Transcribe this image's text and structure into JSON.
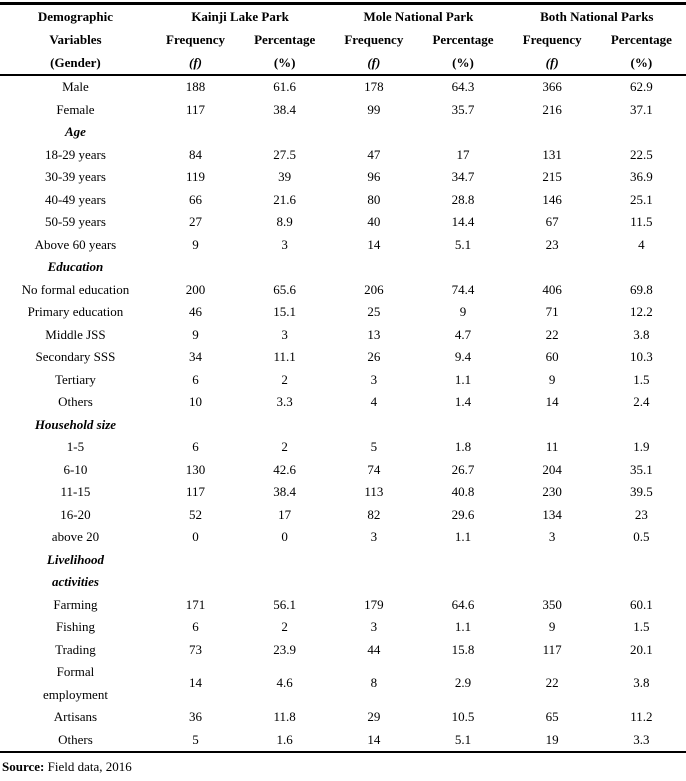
{
  "table": {
    "header": {
      "col1": [
        "Demographic",
        "Variables",
        "(Gender)"
      ],
      "groups": [
        "Kainji Lake Park",
        "Mole National Park",
        "Both National Parks"
      ],
      "sub_labels": [
        "Frequency",
        "Percentage",
        "Frequency",
        "Percentage",
        "Frequency",
        "Percentage"
      ],
      "sub_symbols": [
        "(f)",
        "(%)",
        "(f)",
        "(%)",
        "(f)",
        "(%)"
      ]
    },
    "rows": [
      {
        "type": "data",
        "label": "Male",
        "values": [
          "188",
          "61.6",
          "178",
          "64.3",
          "366",
          "62.9"
        ]
      },
      {
        "type": "data",
        "label": "Female",
        "values": [
          "117",
          "38.4",
          "99",
          "35.7",
          "216",
          "37.1"
        ]
      },
      {
        "type": "section",
        "label": "Age",
        "values": [
          "",
          "",
          "",
          "",
          "",
          ""
        ]
      },
      {
        "type": "data",
        "label": "18-29 years",
        "values": [
          "84",
          "27.5",
          "47",
          "17",
          "131",
          "22.5"
        ]
      },
      {
        "type": "data",
        "label": "30-39 years",
        "values": [
          "119",
          "39",
          "96",
          "34.7",
          "215",
          "36.9"
        ]
      },
      {
        "type": "data",
        "label": "40-49 years",
        "values": [
          "66",
          "21.6",
          "80",
          "28.8",
          "146",
          "25.1"
        ]
      },
      {
        "type": "data",
        "label": "50-59 years",
        "values": [
          "27",
          "8.9",
          "40",
          "14.4",
          "67",
          "11.5"
        ]
      },
      {
        "type": "data",
        "label": "Above 60 years",
        "values": [
          "9",
          "3",
          "14",
          "5.1",
          "23",
          "4"
        ]
      },
      {
        "type": "section",
        "label": "Education",
        "values": [
          "",
          "",
          "",
          "",
          "",
          ""
        ]
      },
      {
        "type": "data",
        "label": "No formal education",
        "values": [
          "200",
          "65.6",
          "206",
          "74.4",
          "406",
          "69.8"
        ]
      },
      {
        "type": "data",
        "label": "Primary education",
        "values": [
          "46",
          "15.1",
          "25",
          "9",
          "71",
          "12.2"
        ]
      },
      {
        "type": "data",
        "label": "Middle JSS",
        "values": [
          "9",
          "3",
          "13",
          "4.7",
          "22",
          "3.8"
        ]
      },
      {
        "type": "data",
        "label": "Secondary SSS",
        "values": [
          "34",
          "11.1",
          "26",
          "9.4",
          "60",
          "10.3"
        ]
      },
      {
        "type": "data",
        "label": "Tertiary",
        "values": [
          "6",
          "2",
          "3",
          "1.1",
          "9",
          "1.5"
        ]
      },
      {
        "type": "data",
        "label": "Others",
        "values": [
          "10",
          "3.3",
          "4",
          "1.4",
          "14",
          "2.4"
        ]
      },
      {
        "type": "section",
        "label": "Household size",
        "values": [
          "",
          "",
          "",
          "",
          "",
          ""
        ]
      },
      {
        "type": "data",
        "label": "1-5",
        "values": [
          "6",
          "2",
          "5",
          "1.8",
          "11",
          "1.9"
        ]
      },
      {
        "type": "data",
        "label": "6-10",
        "values": [
          "130",
          "42.6",
          "74",
          "26.7",
          "204",
          "35.1"
        ]
      },
      {
        "type": "data",
        "label": "11-15",
        "values": [
          "117",
          "38.4",
          "113",
          "40.8",
          "230",
          "39.5"
        ]
      },
      {
        "type": "data",
        "label": "16-20",
        "values": [
          "52",
          "17",
          "82",
          "29.6",
          "134",
          "23"
        ]
      },
      {
        "type": "data",
        "label": "above 20",
        "values": [
          "0",
          "0",
          "3",
          "1.1",
          "3",
          "0.5"
        ]
      },
      {
        "type": "section",
        "label": "Livelihood\nactivities",
        "values": [
          "",
          "",
          "",
          "",
          "",
          ""
        ]
      },
      {
        "type": "data",
        "label": "Farming",
        "values": [
          "171",
          "56.1",
          "179",
          "64.6",
          "350",
          "60.1"
        ]
      },
      {
        "type": "data",
        "label": "Fishing",
        "values": [
          "6",
          "2",
          "3",
          "1.1",
          "9",
          "1.5"
        ]
      },
      {
        "type": "data",
        "label": "Trading",
        "values": [
          "73",
          "23.9",
          "44",
          "15.8",
          "117",
          "20.1"
        ]
      },
      {
        "type": "data",
        "label": "Formal\nemployment",
        "values": [
          "14",
          "4.6",
          "8",
          "2.9",
          "22",
          "3.8"
        ]
      },
      {
        "type": "data",
        "label": "Artisans",
        "values": [
          "36",
          "11.8",
          "29",
          "10.5",
          "65",
          "11.2"
        ]
      },
      {
        "type": "data",
        "label": "Others",
        "values": [
          "5",
          "1.6",
          "14",
          "5.1",
          "19",
          "3.3"
        ]
      }
    ],
    "source": {
      "label": "Source:",
      "text": " Field data, 2016"
    }
  }
}
